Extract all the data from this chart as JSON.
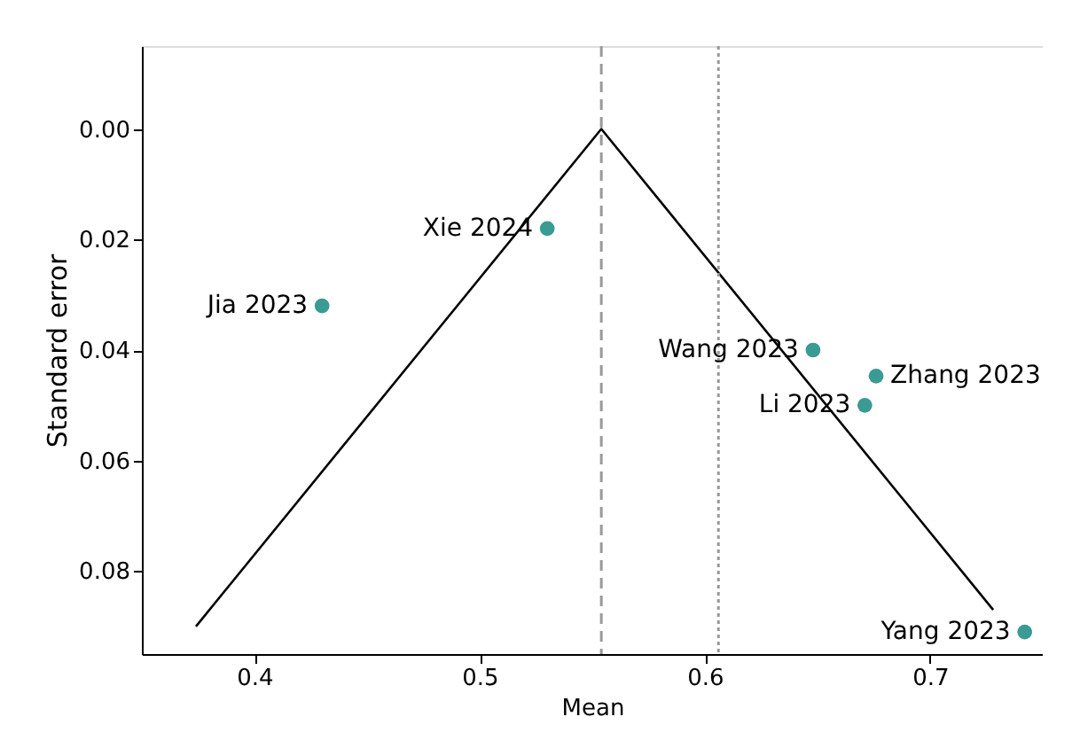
{
  "chart_data": {
    "type": "scatter",
    "xlabel": "Mean",
    "ylabel": "Standard error",
    "xlim": [
      0.35,
      0.75
    ],
    "xticks": [
      0.4,
      0.5,
      0.6,
      0.7
    ],
    "ylim": [
      0.095,
      -0.015
    ],
    "yticks": [
      {
        "value": 0,
        "label": "0.00"
      },
      {
        "value": 0.02,
        "label": "0.02"
      },
      {
        "value": 0.04,
        "label": "0.04"
      },
      {
        "value": 0.06,
        "label": "0.06"
      },
      {
        "value": 0.08,
        "label": "0.08"
      }
    ],
    "series": [
      {
        "marker": "circle",
        "color": "#3a9a94",
        "x": [
          0.53,
          0.43,
          0.648,
          0.676,
          0.671,
          0.742
        ],
        "values": [
          0.018,
          0.032,
          0.04,
          0.0447,
          0.05,
          0.091
        ]
      },
      {
        "type": "line",
        "marker": "none",
        "color": "#000000",
        "x": [
          0.374,
          0.554,
          0.728
        ],
        "values": [
          0.09,
          0.0,
          0.087
        ]
      }
    ],
    "annotations": [
      {
        "text": "Xie 2024",
        "x": 0.53,
        "y": 0.018
      },
      {
        "text": "Jia 2023",
        "x": 0.43,
        "y": 0.032
      },
      {
        "text": "Wang 2023",
        "x": 0.648,
        "y": 0.04
      },
      {
        "text": "Zhang 2023",
        "x": 0.676,
        "y": 0.0447
      },
      {
        "text": "Li 2023",
        "x": 0.671,
        "y": 0.05
      },
      {
        "text": "Yang 2023",
        "x": 0.742,
        "y": 0.091
      }
    ],
    "ref_lines": [
      {
        "axis": "x",
        "value": 0.554,
        "color": "#999999",
        "line_style": "dashed"
      },
      {
        "axis": "x",
        "value": 0.606,
        "color": "#999999",
        "line_style": "dotted"
      }
    ],
    "grid": false
  }
}
